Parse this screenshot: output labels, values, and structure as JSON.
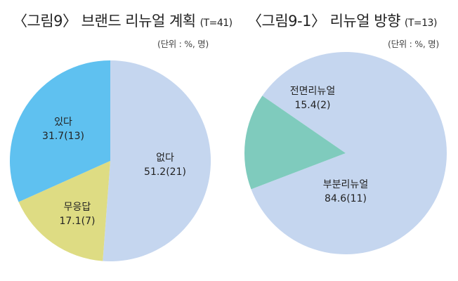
{
  "chart_data": [
    {
      "type": "pie",
      "title": "〈그림9〉 브랜드 리뉴얼 계획",
      "total_note": "(T=41)",
      "unit_note": "(단위 : %, 명)",
      "slices": [
        {
          "label": "없다",
          "value": 51.2,
          "count": 21,
          "display": "51.2(21)",
          "color": "#c5d6ef"
        },
        {
          "label": "무응답",
          "value": 17.1,
          "count": 7,
          "display": "17.1(7)",
          "color": "#dedc83"
        },
        {
          "label": "있다",
          "value": 31.7,
          "count": 13,
          "display": "31.7(13)",
          "color": "#5fc1f0"
        }
      ]
    },
    {
      "type": "pie",
      "title": "〈그림9-1〉 리뉴얼 방향",
      "total_note": "(T=13)",
      "unit_note": "(단위 : %, 명)",
      "slices": [
        {
          "label": "부분리뉴얼",
          "value": 84.6,
          "count": 11,
          "display": "84.6(11)",
          "color": "#c5d6ef"
        },
        {
          "label": "전면리뉴얼",
          "value": 15.4,
          "count": 2,
          "display": "15.4(2)",
          "color": "#7fcbbd"
        }
      ]
    }
  ]
}
